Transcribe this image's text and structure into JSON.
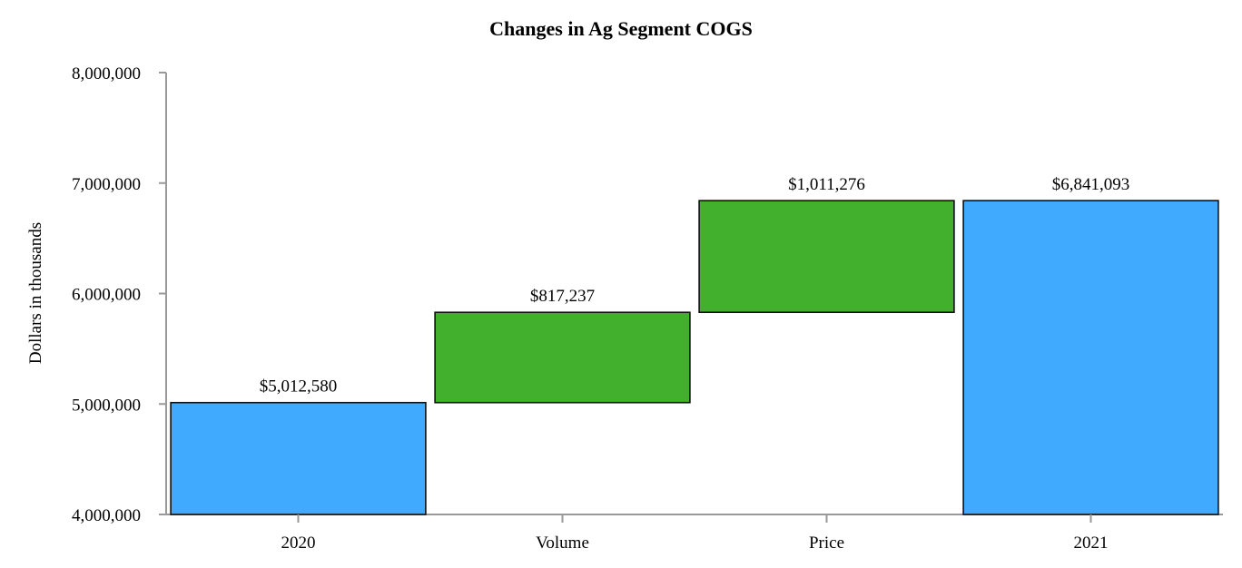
{
  "chart_data": {
    "type": "bar",
    "subtype": "waterfall",
    "title": "Changes in Ag Segment COGS",
    "xlabel": "",
    "ylabel": "Dollars in thousands",
    "ylim": [
      4000000,
      8000000
    ],
    "yticks": [
      4000000,
      5000000,
      6000000,
      7000000,
      8000000
    ],
    "ytick_labels": [
      "4,000,000",
      "5,000,000",
      "6,000,000",
      "7,000,000",
      "8,000,000"
    ],
    "categories": [
      "2020",
      "Volume",
      "Price",
      "2021"
    ],
    "values": [
      5012580,
      817237,
      1011276,
      6841093
    ],
    "bar_kinds": [
      "total",
      "increase",
      "increase",
      "total"
    ],
    "data_labels": [
      "$5,012,580",
      "$817,237",
      "$1,011,276",
      "$6,841,093"
    ],
    "grid": false,
    "legend": "none",
    "colors": {
      "total": "#3FAAFF",
      "increase": "#42B02C",
      "outline": "#111111",
      "axis": "#999999"
    }
  }
}
